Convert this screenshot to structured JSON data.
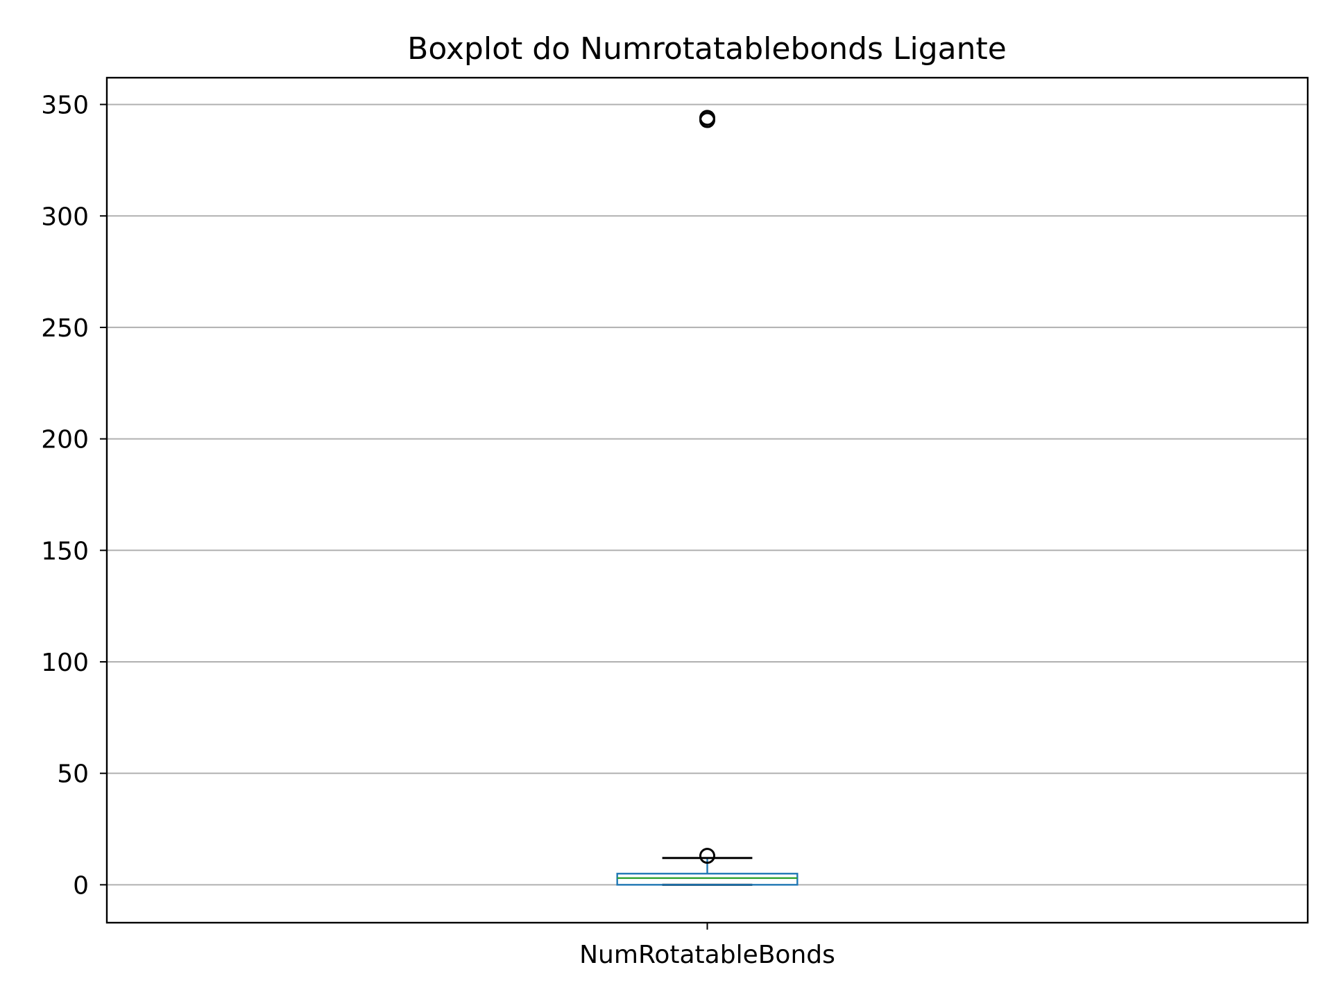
{
  "chart_data": {
    "type": "boxplot",
    "title": "Boxplot do Numrotatablebonds Ligante",
    "xlabel": "",
    "ylabel": "",
    "categories": [
      "NumRotatableBonds"
    ],
    "boxes": [
      {
        "category": "NumRotatableBonds",
        "min": 0,
        "q1": 0,
        "median": 3,
        "q3": 5,
        "max": 12,
        "outliers": [
          13,
          343,
          344
        ]
      }
    ],
    "ylim": [
      -17,
      362
    ],
    "yticks": [
      0,
      50,
      100,
      150,
      200,
      250,
      300,
      350
    ],
    "grid": "y",
    "colors": {
      "box": "#1f77b4",
      "median": "#2ca02c",
      "whisker": "#000000",
      "outlier": "#000000",
      "grid": "#b0b0b0"
    }
  }
}
